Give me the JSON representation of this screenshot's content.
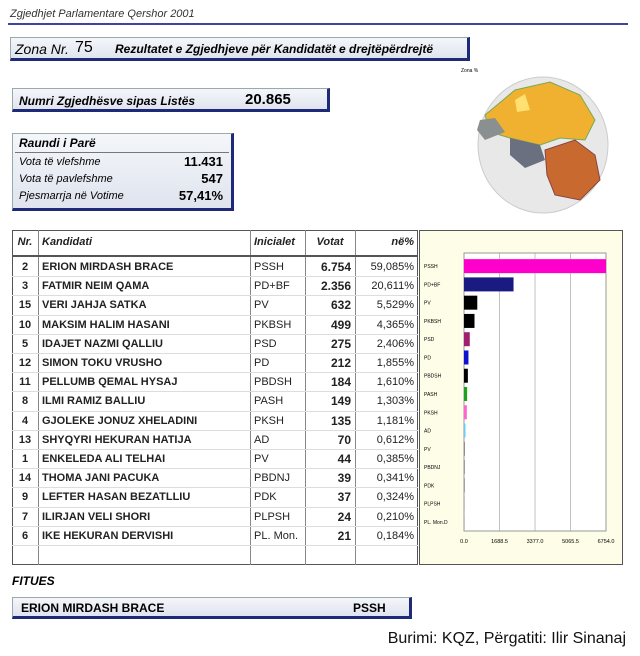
{
  "header": {
    "title": "Zgjedhjet Parlamentare Qershor 2001"
  },
  "zone": {
    "label": "Zona Nr.",
    "number": "75",
    "caption": "Rezultatet e Zgjedhjeve për Kandidatët e drejtëpërdrejtë"
  },
  "voters": {
    "label": "Numri Zgjedhësve sipas Listës",
    "value": "20.865"
  },
  "round": {
    "title": "Raundi i Parë",
    "rows": [
      [
        "Vota të vlefshme",
        "11.431"
      ],
      [
        "Vota të pavlefshme",
        "547"
      ],
      [
        "Pjesmarrja në Votime",
        "57,41%"
      ]
    ]
  },
  "map": {
    "label": "Zona %"
  },
  "table": {
    "columns": [
      "Nr.",
      "Kandidati",
      "Inicialet",
      "Votat",
      "në%"
    ],
    "rows": [
      [
        "2",
        "ERION MIRDASH BRACE",
        "PSSH",
        "6.754",
        "59,085%"
      ],
      [
        "3",
        "FATMIR NEIM QAMA",
        "PD+BF",
        "2.356",
        "20,611%"
      ],
      [
        "15",
        "VERI JAHJA SATKA",
        "PV",
        "632",
        "5,529%"
      ],
      [
        "10",
        "MAKSIM HALIM HASANI",
        "PKBSH",
        "499",
        "4,365%"
      ],
      [
        "5",
        "IDAJET NAZMI QALLIU",
        "PSD",
        "275",
        "2,406%"
      ],
      [
        "12",
        "SIMON TOKU VRUSHO",
        "PD",
        "212",
        "1,855%"
      ],
      [
        "11",
        "PELLUMB QEMAL HYSAJ",
        "PBDSH",
        "184",
        "1,610%"
      ],
      [
        "8",
        "ILMI RAMIZ BALLIU",
        "PASH",
        "149",
        "1,303%"
      ],
      [
        "4",
        "GJOLEKE JONUZ XHELADINI",
        "PKSH",
        "135",
        "1,181%"
      ],
      [
        "13",
        "SHYQYRI HEKURAN HATIJA",
        "AD",
        "70",
        "0,612%"
      ],
      [
        "1",
        "ENKELEDA ALI TELHAI",
        "PV",
        "44",
        "0,385%"
      ],
      [
        "14",
        "THOMA JANI PACUKA",
        "PBDNJ",
        "39",
        "0,341%"
      ],
      [
        "9",
        "LEFTER HASAN BEZATLLIU",
        "PDK",
        "37",
        "0,324%"
      ],
      [
        "7",
        "ILIRJAN VELI SHORI",
        "PLPSH",
        "24",
        "0,210%"
      ],
      [
        "6",
        "IKE HEKURAN DERVISHI",
        "PL. Mon.",
        "21",
        "0,184%"
      ]
    ]
  },
  "chart_data": {
    "type": "bar",
    "categories": [
      "PSSH",
      "PD+BF",
      "PV",
      "PKBSH",
      "PSD",
      "PD",
      "PBDSH",
      "PASH",
      "PKSH",
      "AD",
      "PV",
      "PBDNJ",
      "PDK",
      "PLPSH",
      "PL. Mon.D"
    ],
    "values": [
      6754,
      2356,
      632,
      499,
      275,
      212,
      184,
      149,
      135,
      70,
      44,
      39,
      37,
      24,
      21
    ],
    "colors": [
      "#ff00cc",
      "#1a1a80",
      "#000000",
      "#000000",
      "#a0206f",
      "#1010d0",
      "#000000",
      "#20a020",
      "#ff66cc",
      "#66ccff",
      "#888888",
      "#888888",
      "#888888",
      "#888888",
      "#888888"
    ],
    "xlim": [
      0,
      6754
    ],
    "xticks": [
      {
        "value": 0,
        "label": "0.0"
      },
      1688.5,
      {
        "value": 3377,
        "label": "3377.0"
      },
      5065.5,
      {
        "value": 6754,
        "label": "6754.0"
      }
    ],
    "grid": true
  },
  "winner": {
    "label": "FITUES",
    "name": "ERION MIRDASH BRACE",
    "party": "PSSH"
  },
  "footer": {
    "source": "Burimi: KQZ, Përgatiti: Ilir Sinanaj"
  }
}
